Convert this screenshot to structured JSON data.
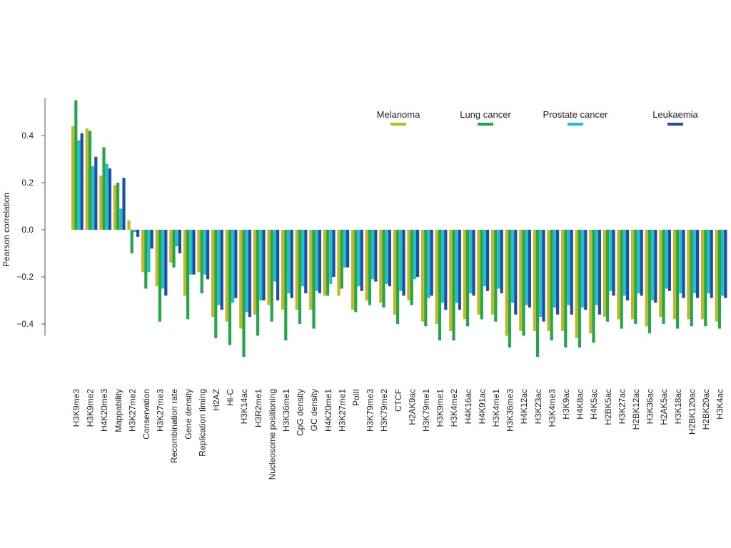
{
  "chart_data": {
    "type": "bar",
    "ylabel": "Pearson correlation",
    "ylim": [
      -0.45,
      0.56
    ],
    "yticks": [
      "0.4",
      "0.2",
      "0.0",
      "−0.2",
      "−0.4"
    ],
    "ytick_values": [
      0.4,
      0.2,
      0.0,
      -0.2,
      -0.4
    ],
    "legend_position": "top-right",
    "grid": false,
    "categories": [
      "H3K9me3",
      "H3K9me2",
      "H4K20me3",
      "Mappability",
      "H3K27me2",
      "Conservation",
      "H3K27me3",
      "Recombination rate",
      "Gene density",
      "Replication timing",
      "H2AZ",
      "Hi-C",
      "H3K14ac",
      "H3R2me1",
      "Nucleosome positioning",
      "H3K36me1",
      "CpG density",
      "GC density",
      "H4K20me1",
      "H3K27me1",
      "PolII",
      "H3K79me3",
      "H3K79me2",
      "CTCF",
      "H2AK9ac",
      "H3K79me1",
      "H3K9me1",
      "H3K4me2",
      "H4K16ac",
      "H4K91ac",
      "H3K4me1",
      "H3K36me3",
      "H4K12ac",
      "H3K23ac",
      "H3K4me3",
      "H3K9ac",
      "H4K8ac",
      "H4K5ac",
      "H2BK5ac",
      "H3K27ac",
      "H2BK12ac",
      "H3K36ac",
      "H2AK5ac",
      "H3K18ac",
      "H2BK120ac",
      "H2BK20ac",
      "H3K4ac"
    ],
    "series": [
      {
        "name": "Melanoma",
        "color": "#c2b62c",
        "values": [
          0.44,
          0.43,
          0.23,
          0.19,
          0.04,
          -0.18,
          -0.24,
          -0.14,
          -0.28,
          -0.18,
          -0.37,
          -0.39,
          -0.42,
          -0.36,
          -0.32,
          -0.34,
          -0.34,
          -0.34,
          -0.28,
          -0.28,
          -0.34,
          -0.3,
          -0.31,
          -0.36,
          -0.3,
          -0.39,
          -0.4,
          -0.43,
          -0.38,
          -0.36,
          -0.36,
          -0.45,
          -0.43,
          -0.43,
          -0.43,
          -0.43,
          -0.46,
          -0.44,
          -0.37,
          -0.38,
          -0.38,
          -0.41,
          -0.37,
          -0.38,
          -0.38,
          -0.38,
          -0.39
        ]
      },
      {
        "name": "Lung cancer",
        "color": "#22a84a",
        "values": [
          0.55,
          0.42,
          0.35,
          0.2,
          -0.1,
          -0.25,
          -0.39,
          -0.16,
          -0.38,
          -0.27,
          -0.46,
          -0.49,
          -0.54,
          -0.45,
          -0.39,
          -0.47,
          -0.4,
          -0.42,
          -0.28,
          -0.25,
          -0.35,
          -0.32,
          -0.33,
          -0.4,
          -0.32,
          -0.41,
          -0.47,
          -0.47,
          -0.41,
          -0.38,
          -0.39,
          -0.5,
          -0.45,
          -0.54,
          -0.47,
          -0.5,
          -0.5,
          -0.48,
          -0.39,
          -0.42,
          -0.4,
          -0.44,
          -0.4,
          -0.42,
          -0.41,
          -0.41,
          -0.42
        ]
      },
      {
        "name": "Prostate cancer",
        "color": "#27bdc8",
        "values": [
          0.38,
          0.27,
          0.28,
          0.09,
          -0.01,
          -0.18,
          -0.25,
          -0.07,
          -0.19,
          -0.19,
          -0.32,
          -0.31,
          -0.35,
          -0.3,
          -0.22,
          -0.27,
          -0.24,
          -0.26,
          -0.23,
          -0.16,
          -0.24,
          -0.21,
          -0.23,
          -0.26,
          -0.21,
          -0.29,
          -0.31,
          -0.31,
          -0.27,
          -0.24,
          -0.25,
          -0.31,
          -0.32,
          -0.37,
          -0.33,
          -0.32,
          -0.33,
          -0.32,
          -0.26,
          -0.28,
          -0.27,
          -0.3,
          -0.25,
          -0.27,
          -0.27,
          -0.27,
          -0.28
        ]
      },
      {
        "name": "Leukaemia",
        "color": "#1e4fa5",
        "values": [
          0.41,
          0.31,
          0.26,
          0.22,
          -0.03,
          -0.08,
          -0.28,
          -0.1,
          -0.19,
          -0.21,
          -0.34,
          -0.29,
          -0.37,
          -0.3,
          -0.3,
          -0.29,
          -0.27,
          -0.27,
          -0.2,
          -0.16,
          -0.26,
          -0.22,
          -0.24,
          -0.28,
          -0.2,
          -0.28,
          -0.34,
          -0.34,
          -0.28,
          -0.26,
          -0.27,
          -0.36,
          -0.33,
          -0.39,
          -0.36,
          -0.36,
          -0.34,
          -0.36,
          -0.28,
          -0.3,
          -0.28,
          -0.31,
          -0.26,
          -0.29,
          -0.29,
          -0.29,
          -0.29
        ]
      }
    ]
  }
}
